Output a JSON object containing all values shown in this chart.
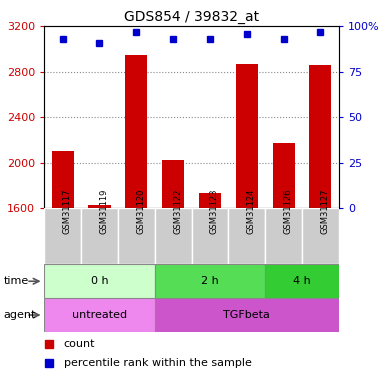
{
  "title": "GDS854 / 39832_at",
  "samples": [
    "GSM31117",
    "GSM31119",
    "GSM31120",
    "GSM31122",
    "GSM31123",
    "GSM31124",
    "GSM31126",
    "GSM31127"
  ],
  "counts": [
    2100,
    1625,
    2950,
    2020,
    1730,
    2870,
    2170,
    2860
  ],
  "percentiles": [
    93,
    91,
    97,
    93,
    93,
    96,
    93,
    97
  ],
  "ylim_left": [
    1600,
    3200
  ],
  "ylim_right": [
    0,
    100
  ],
  "yticks_left": [
    1600,
    2000,
    2400,
    2800,
    3200
  ],
  "yticks_right": [
    0,
    25,
    50,
    75,
    100
  ],
  "bar_color": "#cc0000",
  "dot_color": "#0000cc",
  "time_groups": [
    {
      "label": "0 h",
      "start": 0,
      "end": 3,
      "color": "#ccffcc"
    },
    {
      "label": "2 h",
      "start": 3,
      "end": 6,
      "color": "#55dd55"
    },
    {
      "label": "4 h",
      "start": 6,
      "end": 8,
      "color": "#33cc33"
    }
  ],
  "agent_groups": [
    {
      "label": "untreated",
      "start": 0,
      "end": 3,
      "color": "#ee88ee"
    },
    {
      "label": "TGFbeta",
      "start": 3,
      "end": 8,
      "color": "#cc55cc"
    }
  ],
  "time_label": "time",
  "agent_label": "agent",
  "legend_count_label": "count",
  "legend_pct_label": "percentile rank within the sample",
  "grid_color": "#888888",
  "sample_box_color": "#cccccc",
  "border_color": "#888888"
}
